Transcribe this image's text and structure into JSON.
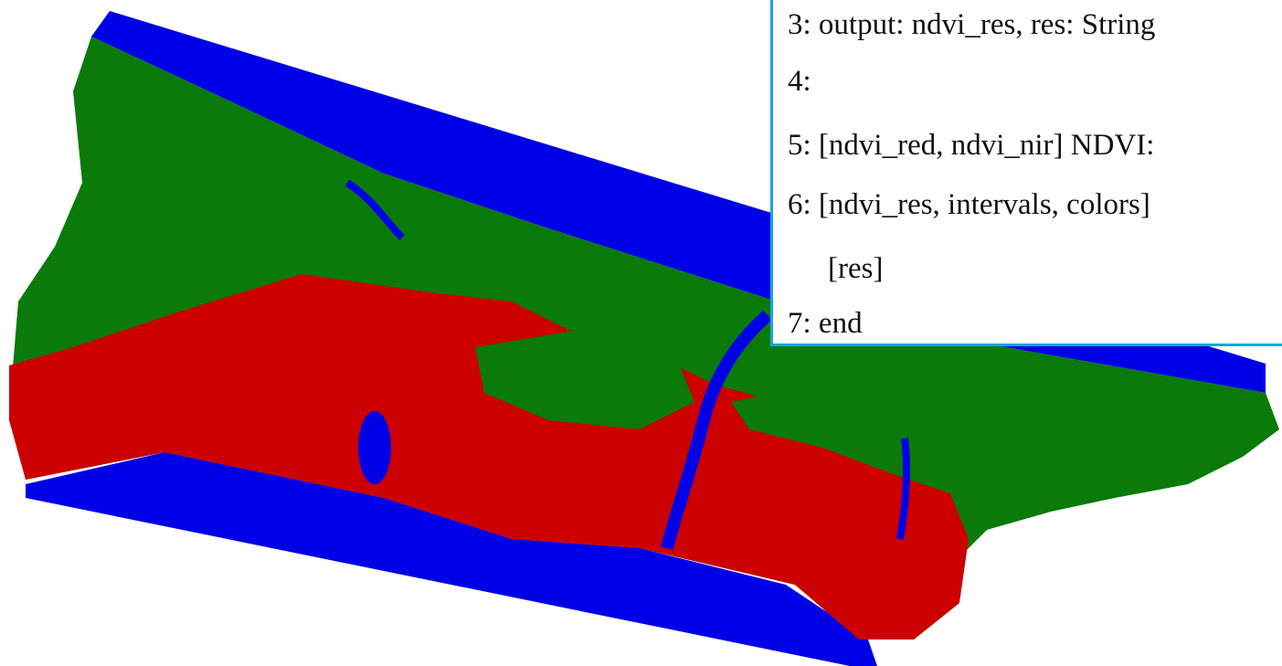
{
  "code_lines": [
    "3: output: ndvi_res, res: String",
    "4:",
    "5: [ndvi_red, ndvi_nir] NDVI:",
    "6: [ndvi_res, intervals, colors]",
    "[res]",
    "7: end"
  ]
}
